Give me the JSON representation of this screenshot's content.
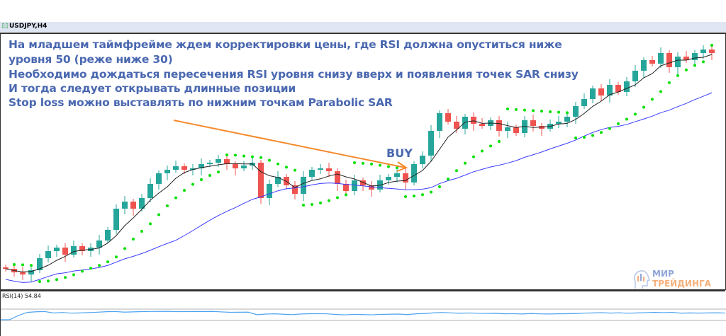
{
  "window": {
    "symbol_title": "USDJPY,H4"
  },
  "annotations": {
    "lines": [
      "На младшем таймфрейме ждем корректировки цены, где RSI должна опуститься ниже",
      "уровня 50 (реже ниже 30)",
      "Необходимо дождаться пересечения RSI уровня снизу вверх и появления точек SAR снизу",
      "И тогда следует открывать длинные позиции",
      "Stop loss можно выставлять по нижним точкам Parabolic SAR"
    ],
    "buy_label": "BUY",
    "arrow_color": "#f58a2c",
    "text_color": "#4a68b0"
  },
  "rsi_panel": {
    "label": "RSI(14) 54.84",
    "levels": [
      70,
      30
    ],
    "line_color": "#4da3f0"
  },
  "logo": {
    "line1": "МИР",
    "line2": "ТРЕЙДИНГА"
  },
  "chart_data": {
    "type": "candlestick",
    "symbol": "USDJPY",
    "timeframe": "H4",
    "first_open": 32,
    "closes": [
      30,
      25,
      22,
      28,
      45,
      55,
      60,
      50,
      62,
      55,
      60,
      70,
      85,
      115,
      125,
      115,
      130,
      150,
      165,
      170,
      175,
      170,
      172,
      178,
      180,
      185,
      178,
      172,
      176,
      180,
      130,
      150,
      160,
      148,
      136,
      160,
      170,
      172,
      168,
      150,
      140,
      155,
      148,
      142,
      155,
      160,
      165,
      152,
      178,
      190,
      225,
      250,
      238,
      228,
      245,
      235,
      232,
      240,
      225,
      230,
      222,
      240,
      232,
      228,
      235,
      238,
      245,
      260,
      270,
      285,
      275,
      290,
      280,
      295,
      310,
      325,
      320,
      335,
      315,
      330,
      325,
      335,
      340,
      335
    ],
    "indicators": [
      "Moving Average (fast)",
      "Moving Average (slow)",
      "Parabolic SAR",
      "RSI(14)"
    ],
    "colors": {
      "bull": "#26a69a",
      "bear": "#ef5350",
      "ma_fast": "#222222",
      "ma_slow": "#3b3bff",
      "sar": "#00e000"
    }
  }
}
